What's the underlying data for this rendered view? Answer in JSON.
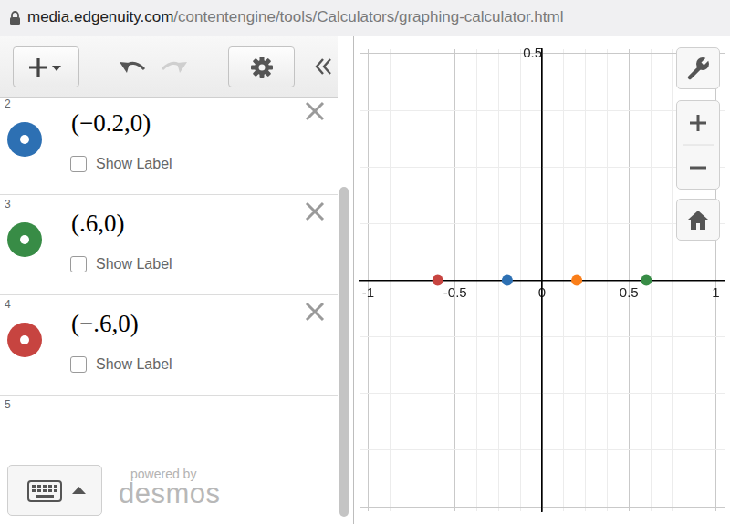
{
  "browser": {
    "url_host": "media.edgenuity.com",
    "url_path": "/contentengine/tools/Calculators/graphing-calculator.html"
  },
  "expression_list": {
    "rows": [
      {
        "number": 2,
        "text": "(−0.2,0)",
        "color": "#2d70b3",
        "checkbox_label": "Show Label"
      },
      {
        "number": 3,
        "text": "(.6,0)",
        "color": "#388c46",
        "checkbox_label": "Show Label"
      },
      {
        "number": 4,
        "text": "(−.6,0)",
        "color": "#c74440",
        "checkbox_label": "Show Label"
      }
    ],
    "empty_row_number": 5
  },
  "branding": {
    "line1": "powered by",
    "line2": "desmos"
  },
  "chart_data": {
    "type": "scatter",
    "x": [
      0.2,
      -0.2,
      0.6,
      -0.6
    ],
    "values": [
      0,
      0,
      0,
      0
    ],
    "colors": [
      "#fa7e19",
      "#2d70b3",
      "#388c46",
      "#c74440"
    ],
    "xlim": [
      -1.05,
      1.05
    ],
    "xticks": [
      -1,
      -0.5,
      0,
      0.5,
      1
    ],
    "ylim": [
      -0.51,
      0.51
    ],
    "yticks": [
      0.5
    ],
    "grid": true
  }
}
